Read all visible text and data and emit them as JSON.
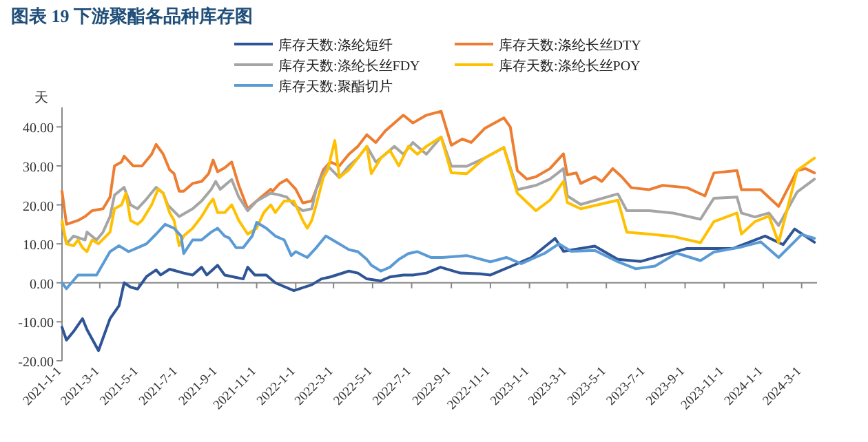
{
  "chart_data": {
    "type": "line",
    "title": "图表 19 下游聚酯各品种库存图",
    "ylabel": "天",
    "xlim": [
      "2021-01-01",
      "2024-03-25"
    ],
    "ylim": [
      -20,
      45
    ],
    "xticks": [
      {
        "value": "2021-01-01",
        "label": "2021-1-1"
      },
      {
        "value": "2021-03-01",
        "label": "2021-3-1"
      },
      {
        "value": "2021-05-01",
        "label": "2021-5-1"
      },
      {
        "value": "2021-07-01",
        "label": "2021-7-1"
      },
      {
        "value": "2021-09-01",
        "label": "2021-9-1"
      },
      {
        "value": "2021-11-01",
        "label": "2021-11-1"
      },
      {
        "value": "2022-01-01",
        "label": "2022-1-1"
      },
      {
        "value": "2022-03-01",
        "label": "2022-3-1"
      },
      {
        "value": "2022-05-01",
        "label": "2022-5-1"
      },
      {
        "value": "2022-07-01",
        "label": "2022-7-1"
      },
      {
        "value": "2022-09-01",
        "label": "2022-9-1"
      },
      {
        "value": "2022-11-01",
        "label": "2022-11-1"
      },
      {
        "value": "2023-01-01",
        "label": "2023-1-1"
      },
      {
        "value": "2023-03-01",
        "label": "2023-3-1"
      },
      {
        "value": "2023-05-01",
        "label": "2023-5-1"
      },
      {
        "value": "2023-07-01",
        "label": "2023-7-1"
      },
      {
        "value": "2023-09-01",
        "label": "2023-9-1"
      },
      {
        "value": "2023-11-01",
        "label": "2023-11-1"
      },
      {
        "value": "2024-01-01",
        "label": "2024-1-1"
      },
      {
        "value": "2024-03-01",
        "label": "2024-3-1"
      }
    ],
    "yticks": [
      {
        "value": -20,
        "label": "-20.00"
      },
      {
        "value": -10,
        "label": "-10.00"
      },
      {
        "value": 0,
        "label": "0.00"
      },
      {
        "value": 10,
        "label": "10.00"
      },
      {
        "value": 20,
        "label": "20.00"
      },
      {
        "value": 30,
        "label": "30.00"
      },
      {
        "value": 40,
        "label": "40.00"
      }
    ],
    "grid": false,
    "ref_lines": [
      {
        "axis": "y",
        "value": 0,
        "color": "#888888"
      }
    ],
    "legend": "top",
    "marker": "none",
    "line_style": "solid",
    "series": [
      {
        "name": "库存天数:涤纶短纤",
        "color": "#2f5597",
        "x": [
          "2021-01-01",
          "2021-01-08",
          "2021-01-19",
          "2021-02-02",
          "2021-02-09",
          "2021-02-27",
          "2021-03-17",
          "2021-03-31",
          "2021-04-08",
          "2021-04-18",
          "2021-04-29",
          "2021-05-13",
          "2021-05-28",
          "2021-06-04",
          "2021-06-18",
          "2021-07-10",
          "2021-07-24",
          "2021-08-07",
          "2021-08-15",
          "2021-08-22",
          "2021-09-01",
          "2021-09-12",
          "2021-09-26",
          "2021-10-11",
          "2021-10-18",
          "2021-10-29",
          "2021-11-16",
          "2021-11-30",
          "2021-12-29",
          "2022-01-26",
          "2022-02-10",
          "2022-02-24",
          "2022-03-25",
          "2022-04-08",
          "2022-04-22",
          "2022-05-14",
          "2022-05-28",
          "2022-06-18",
          "2022-07-03",
          "2022-07-24",
          "2022-08-15",
          "2022-09-15",
          "2022-10-16",
          "2022-11-01",
          "2022-12-13",
          "2023-01-04",
          "2023-02-10",
          "2023-02-23",
          "2023-04-13",
          "2023-05-19",
          "2023-06-24",
          "2023-09-04",
          "2023-11-15",
          "2024-01-04",
          "2024-02-01",
          "2024-02-19",
          "2024-03-21"
        ],
        "values": [
          -11.4,
          -14.7,
          -12.5,
          -9.2,
          -12,
          -17.4,
          -9.2,
          -5.9,
          0,
          -1.1,
          -1.6,
          1.6,
          3.3,
          2,
          3.5,
          2.5,
          2,
          4,
          2,
          3,
          4.5,
          2,
          1.5,
          1,
          4,
          2,
          2,
          0,
          -2,
          -0.5,
          1,
          1.5,
          3,
          2.5,
          1,
          0.5,
          1.5,
          2,
          2,
          2.5,
          4,
          2.5,
          2.3,
          2,
          4.9,
          6.5,
          11.4,
          8.1,
          9.4,
          6,
          5.5,
          8.8,
          8.8,
          12,
          9.8,
          13.8,
          10.4
        ]
      },
      {
        "name": "库存天数:涤纶长丝DTY",
        "color": "#ed7d31",
        "x": [
          "2021-01-01",
          "2021-01-08",
          "2021-01-26",
          "2021-02-06",
          "2021-02-17",
          "2021-03-06",
          "2021-03-17",
          "2021-03-24",
          "2021-04-04",
          "2021-04-08",
          "2021-04-22",
          "2021-05-06",
          "2021-05-21",
          "2021-05-28",
          "2021-06-08",
          "2021-06-18",
          "2021-06-25",
          "2021-07-03",
          "2021-07-10",
          "2021-07-24",
          "2021-08-07",
          "2021-08-18",
          "2021-08-25",
          "2021-09-01",
          "2021-09-12",
          "2021-09-23",
          "2021-10-04",
          "2021-10-18",
          "2021-10-25",
          "2021-11-08",
          "2021-11-23",
          "2021-11-26",
          "2021-12-07",
          "2021-12-18",
          "2022-01-01",
          "2022-01-12",
          "2022-01-26",
          "2022-02-02",
          "2022-02-13",
          "2022-02-24",
          "2022-03-10",
          "2022-03-25",
          "2022-04-08",
          "2022-04-22",
          "2022-05-06",
          "2022-05-21",
          "2022-06-04",
          "2022-06-18",
          "2022-07-03",
          "2022-07-24",
          "2022-08-16",
          "2022-09-01",
          "2022-09-18",
          "2022-10-02",
          "2022-10-23",
          "2022-11-22",
          "2022-12-02",
          "2022-12-13",
          "2022-12-28",
          "2023-01-11",
          "2023-02-02",
          "2023-02-23",
          "2023-03-01",
          "2023-03-15",
          "2023-03-22",
          "2023-04-13",
          "2023-04-24",
          "2023-05-11",
          "2023-05-25",
          "2023-06-09",
          "2023-07-07",
          "2023-07-28",
          "2023-09-04",
          "2023-10-02",
          "2023-10-16",
          "2023-11-21",
          "2023-11-28",
          "2023-12-28",
          "2024-01-25",
          "2024-02-23",
          "2024-03-07",
          "2024-03-21"
        ],
        "values": [
          23.5,
          15,
          16,
          17,
          18.5,
          19,
          22,
          30,
          31,
          32.5,
          30,
          30,
          33,
          35.5,
          33,
          29,
          28,
          23.5,
          23.5,
          25.5,
          26,
          28,
          31.5,
          28.5,
          29.5,
          31,
          25,
          19,
          20,
          22,
          24,
          23.5,
          25.5,
          26.5,
          24,
          20.5,
          21,
          24,
          29,
          31,
          30,
          33,
          35,
          38,
          36,
          39,
          41,
          43,
          41,
          43,
          44,
          35.3,
          36.9,
          36,
          39.6,
          42.3,
          40,
          28.8,
          26.6,
          27.2,
          29.3,
          33.1,
          27.7,
          28.2,
          25.5,
          27.2,
          26,
          29.3,
          27.2,
          24.4,
          23.9,
          25,
          24.4,
          22.3,
          28.2,
          28.8,
          23.9,
          23.9,
          19.6,
          28.8,
          29.3,
          28.2
        ]
      },
      {
        "name": "库存天数:涤纶长丝FDY",
        "color": "#a5a5a5",
        "x": [
          "2021-01-01",
          "2021-01-08",
          "2021-01-19",
          "2021-02-06",
          "2021-02-09",
          "2021-02-24",
          "2021-03-06",
          "2021-03-17",
          "2021-03-24",
          "2021-04-08",
          "2021-04-18",
          "2021-04-29",
          "2021-05-13",
          "2021-05-28",
          "2021-06-08",
          "2021-06-15",
          "2021-07-03",
          "2021-07-24",
          "2021-08-07",
          "2021-08-22",
          "2021-08-29",
          "2021-09-05",
          "2021-09-23",
          "2021-10-04",
          "2021-10-18",
          "2021-11-01",
          "2021-11-12",
          "2021-11-23",
          "2021-12-07",
          "2021-12-18",
          "2021-12-29",
          "2022-01-12",
          "2022-01-26",
          "2022-02-02",
          "2022-02-13",
          "2022-02-20",
          "2022-03-10",
          "2022-03-25",
          "2022-04-08",
          "2022-04-22",
          "2022-05-06",
          "2022-05-21",
          "2022-06-04",
          "2022-06-18",
          "2022-07-03",
          "2022-07-24",
          "2022-08-16",
          "2022-09-01",
          "2022-09-25",
          "2022-10-23",
          "2022-11-22",
          "2022-12-13",
          "2023-01-11",
          "2023-02-02",
          "2023-02-23",
          "2023-03-01",
          "2023-03-22",
          "2023-05-19",
          "2023-06-02",
          "2023-07-07",
          "2023-08-13",
          "2023-09-25",
          "2023-10-16",
          "2023-11-21",
          "2023-11-28",
          "2023-12-19",
          "2024-01-10",
          "2024-01-25",
          "2024-02-23",
          "2024-03-21"
        ],
        "values": [
          15,
          10,
          12,
          11,
          13,
          11,
          13,
          17,
          22.5,
          24.5,
          20,
          19,
          21.5,
          24.5,
          23,
          20,
          17,
          19,
          21,
          24,
          26,
          24,
          26.5,
          22,
          18.5,
          21,
          22,
          23,
          22.5,
          22,
          20,
          18.5,
          19,
          24,
          28,
          30,
          27,
          30,
          32,
          35,
          31,
          33,
          35,
          33,
          36,
          33,
          37.4,
          29.9,
          29.9,
          32,
          34.7,
          23.9,
          25,
          26.6,
          29.3,
          22.3,
          20.1,
          22.8,
          18.5,
          18.5,
          17.9,
          16.3,
          21.7,
          22,
          17.9,
          16.9,
          17.9,
          14.7,
          23.3,
          26.6
        ]
      },
      {
        "name": "库存天数:涤纶长丝POY",
        "color": "#ffc000",
        "x": [
          "2021-01-01",
          "2021-01-08",
          "2021-01-19",
          "2021-01-26",
          "2021-02-02",
          "2021-02-09",
          "2021-02-17",
          "2021-02-27",
          "2021-03-17",
          "2021-03-24",
          "2021-04-04",
          "2021-04-11",
          "2021-04-18",
          "2021-04-29",
          "2021-05-06",
          "2021-05-21",
          "2021-05-31",
          "2021-06-08",
          "2021-06-18",
          "2021-06-25",
          "2021-07-03",
          "2021-07-10",
          "2021-07-24",
          "2021-08-07",
          "2021-08-18",
          "2021-08-25",
          "2021-09-01",
          "2021-09-12",
          "2021-09-23",
          "2021-10-04",
          "2021-10-18",
          "2021-11-01",
          "2021-11-12",
          "2021-11-23",
          "2021-11-30",
          "2021-12-14",
          "2021-12-29",
          "2022-01-12",
          "2022-01-19",
          "2022-01-26",
          "2022-02-02",
          "2022-02-13",
          "2022-02-20",
          "2022-03-03",
          "2022-03-10",
          "2022-03-25",
          "2022-04-08",
          "2022-04-22",
          "2022-04-29",
          "2022-05-14",
          "2022-05-28",
          "2022-06-11",
          "2022-06-26",
          "2022-07-10",
          "2022-07-24",
          "2022-08-16",
          "2022-09-01",
          "2022-09-25",
          "2022-10-23",
          "2022-11-22",
          "2022-12-13",
          "2023-01-11",
          "2023-02-02",
          "2023-02-23",
          "2023-03-01",
          "2023-03-22",
          "2023-05-19",
          "2023-06-02",
          "2023-07-07",
          "2023-08-13",
          "2023-09-25",
          "2023-10-16",
          "2023-11-21",
          "2023-11-28",
          "2023-12-19",
          "2024-01-10",
          "2024-01-25",
          "2024-02-23",
          "2024-03-21"
        ],
        "values": [
          16,
          10,
          9.5,
          11,
          9,
          8,
          11,
          10,
          13,
          19,
          20,
          23,
          16,
          15,
          16,
          20,
          24,
          23,
          18,
          16,
          9.5,
          12,
          14,
          17,
          20,
          21.5,
          18,
          18,
          20,
          16,
          12.5,
          14,
          18,
          20,
          18,
          21,
          21,
          16,
          14,
          16,
          20,
          27,
          29,
          36.5,
          27,
          29,
          32,
          35,
          28,
          32,
          34,
          30,
          35,
          33,
          35,
          37.4,
          28.2,
          28,
          32,
          34.7,
          23,
          18.5,
          21.2,
          26,
          20.6,
          19,
          21.2,
          13,
          12.5,
          11.9,
          10.3,
          15.7,
          17.9,
          12.5,
          15.7,
          17.1,
          10.3,
          28.8,
          32
        ]
      },
      {
        "name": "库存天数:聚酯切片",
        "color": "#5b9bd5",
        "x": [
          "2021-01-01",
          "2021-01-08",
          "2021-01-26",
          "2021-02-24",
          "2021-03-17",
          "2021-03-31",
          "2021-04-15",
          "2021-04-29",
          "2021-05-13",
          "2021-05-28",
          "2021-06-11",
          "2021-06-25",
          "2021-07-06",
          "2021-07-10",
          "2021-07-24",
          "2021-08-07",
          "2021-08-22",
          "2021-09-01",
          "2021-09-12",
          "2021-09-19",
          "2021-09-30",
          "2021-10-11",
          "2021-10-25",
          "2021-11-01",
          "2021-11-16",
          "2021-11-30",
          "2021-12-14",
          "2021-12-25",
          "2022-01-01",
          "2022-01-19",
          "2022-02-02",
          "2022-02-17",
          "2022-03-10",
          "2022-03-25",
          "2022-04-08",
          "2022-04-22",
          "2022-04-29",
          "2022-05-14",
          "2022-05-28",
          "2022-06-11",
          "2022-06-26",
          "2022-07-10",
          "2022-07-24",
          "2022-07-31",
          "2022-08-18",
          "2022-09-25",
          "2022-11-01",
          "2022-11-26",
          "2022-12-19",
          "2023-01-25",
          "2023-02-16",
          "2023-03-07",
          "2023-04-13",
          "2023-05-19",
          "2023-06-16",
          "2023-07-16",
          "2023-08-19",
          "2023-09-25",
          "2023-10-16",
          "2023-11-28",
          "2023-12-28",
          "2024-01-25",
          "2024-03-01",
          "2024-03-21"
        ],
        "values": [
          0,
          -1.5,
          2,
          2,
          8,
          9.5,
          8,
          9,
          10,
          12.5,
          15,
          14,
          12,
          7.5,
          11,
          11,
          13,
          14,
          12,
          11.5,
          9,
          9,
          12,
          15.5,
          14,
          12,
          11,
          7,
          8,
          6.5,
          9,
          12,
          10,
          8.5,
          8,
          6,
          4.5,
          3,
          4,
          6,
          7.5,
          8,
          7,
          6.5,
          6.5,
          7,
          5.4,
          6.5,
          4.9,
          7.6,
          10,
          8.1,
          8.3,
          5.4,
          3.6,
          4.3,
          7.6,
          5.7,
          7.9,
          9.2,
          10.5,
          6.5,
          12.4,
          11.4
        ]
      }
    ]
  }
}
